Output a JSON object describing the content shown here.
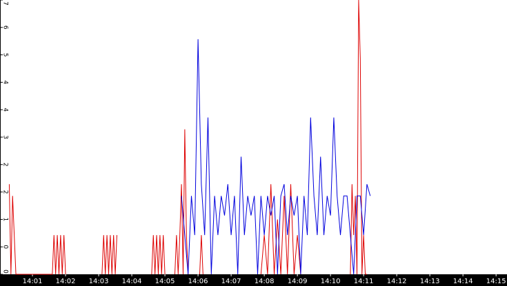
{
  "chart_data": {
    "type": "line",
    "xlim": [
      0.02,
      15.33
    ],
    "xticks": [
      {
        "value": 1,
        "label": "14:01"
      },
      {
        "value": 2,
        "label": "14:02"
      },
      {
        "value": 3,
        "label": "14:03"
      },
      {
        "value": 4,
        "label": "14:04"
      },
      {
        "value": 5,
        "label": "14:05"
      },
      {
        "value": 6,
        "label": "14:06"
      },
      {
        "value": 7,
        "label": "14:07"
      },
      {
        "value": 8,
        "label": "14:08"
      },
      {
        "value": 9,
        "label": "14:09"
      },
      {
        "value": 10,
        "label": "14:10"
      },
      {
        "value": 11,
        "label": "14:11"
      },
      {
        "value": 12,
        "label": "14:12"
      },
      {
        "value": 13,
        "label": "14:13"
      },
      {
        "value": 14,
        "label": "14:14"
      },
      {
        "value": 15,
        "label": "14:15"
      }
    ],
    "ylim": [
      0,
      7
    ],
    "yticks": [
      {
        "value": 0,
        "label": "0"
      },
      {
        "value": 0.7,
        "label": "0"
      },
      {
        "value": 1.4,
        "label": "1"
      },
      {
        "value": 2.1,
        "label": "2"
      },
      {
        "value": 2.8,
        "label": "2"
      },
      {
        "value": 3.5,
        "label": "3"
      },
      {
        "value": 4.2,
        "label": "4"
      },
      {
        "value": 4.9,
        "label": "4"
      },
      {
        "value": 5.6,
        "label": "5"
      },
      {
        "value": 6.3,
        "label": "6"
      },
      {
        "value": 7,
        "label": "7"
      }
    ],
    "series": [
      {
        "color": "#dd0000",
        "x": [
          0.3,
          0.35,
          0.4,
          0.5,
          1.6,
          1.65,
          1.7,
          1.75,
          1.8,
          1.85,
          1.9,
          1.95,
          2.0,
          2.1,
          3.1,
          3.15,
          3.2,
          3.25,
          3.3,
          3.35,
          3.4,
          3.45,
          3.5,
          3.55,
          3.7,
          4.6,
          4.65,
          4.7,
          4.75,
          4.8,
          4.85,
          4.9,
          4.95,
          5.0,
          5.1,
          5.3,
          5.35,
          5.4,
          5.45,
          5.5,
          5.55,
          5.6,
          5.65,
          5.7,
          5.8,
          6.05,
          6.1,
          6.15,
          6.25,
          7.9,
          8.0,
          8.1,
          8.2,
          8.3,
          8.4,
          8.5,
          8.6,
          8.7,
          8.8,
          8.9,
          9.0,
          9.1,
          9.2,
          10.6,
          10.65,
          10.7,
          10.75,
          10.8,
          10.85,
          10.9,
          10.95,
          11.0,
          11.05,
          11.1
        ],
        "values": [
          2.3,
          0,
          2,
          0,
          0,
          1,
          0,
          1,
          0,
          1,
          0,
          1,
          0,
          null,
          0,
          1,
          0,
          1,
          0,
          1,
          0,
          1,
          0,
          1,
          null,
          0,
          1,
          0,
          1,
          0,
          1,
          0,
          1,
          0,
          null,
          0,
          1,
          0,
          1,
          2.3,
          0,
          3.7,
          1,
          0,
          null,
          0,
          1,
          0,
          null,
          0,
          1,
          0,
          2.3,
          0,
          1.4,
          0,
          2,
          0,
          2.3,
          0,
          1,
          0,
          null,
          0,
          2.3,
          1,
          2,
          0,
          7,
          5.5,
          0,
          1,
          0,
          0
        ]
      },
      {
        "color": "#0000dd",
        "x": [
          5.5,
          5.6,
          5.7,
          5.8,
          5.9,
          6.0,
          6.1,
          6.2,
          6.3,
          6.4,
          6.5,
          6.6,
          6.7,
          6.8,
          6.9,
          7.0,
          7.1,
          7.2,
          7.3,
          7.4,
          7.5,
          7.6,
          7.7,
          7.8,
          7.9,
          8.0,
          8.1,
          8.2,
          8.3,
          8.4,
          8.5,
          8.6,
          8.7,
          8.8,
          8.9,
          9.0,
          9.1,
          9.2,
          9.3,
          9.4,
          9.5,
          9.6,
          9.7,
          9.8,
          9.9,
          10.0,
          10.1,
          10.2,
          10.3,
          10.4,
          10.5,
          10.6,
          10.7,
          10.8,
          10.9,
          11.0,
          11.1,
          11.2
        ],
        "values": [
          2,
          1,
          0,
          2,
          1,
          6,
          2.3,
          1,
          4,
          0,
          2,
          1,
          2,
          1.5,
          2.3,
          1,
          2,
          0,
          3,
          1,
          2,
          1.5,
          2,
          0,
          2,
          1,
          2,
          1.5,
          2,
          0,
          2,
          2.3,
          1,
          2,
          1.5,
          2,
          0,
          2,
          1,
          4,
          2,
          1,
          3,
          1,
          2,
          1.5,
          4,
          2,
          1,
          2,
          2,
          1,
          0,
          2,
          2,
          1,
          2.3,
          2
        ]
      }
    ]
  }
}
